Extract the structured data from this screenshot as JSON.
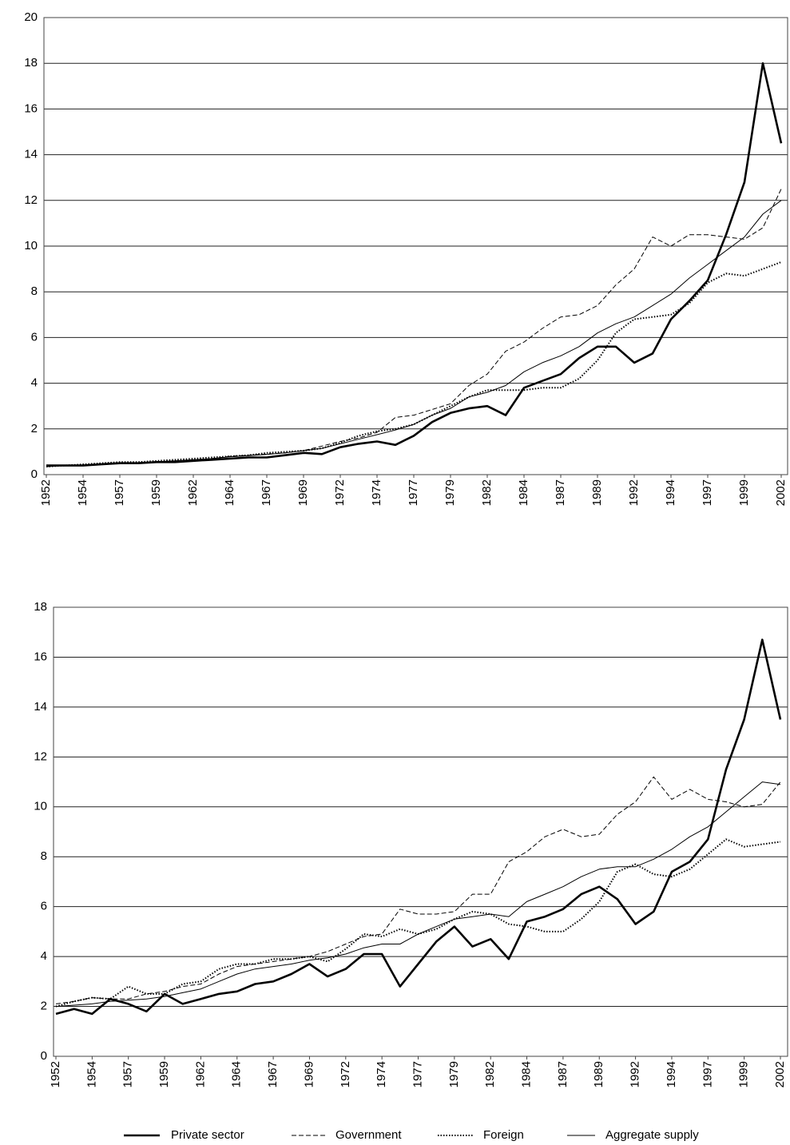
{
  "chart_data": [
    {
      "type": "line",
      "categories": [
        "1952",
        null,
        "1954",
        null,
        "1957",
        null,
        "1959",
        null,
        "1962",
        null,
        "1964",
        null,
        "1967",
        null,
        "1969",
        null,
        "1972",
        null,
        "1974",
        null,
        "1977",
        null,
        "1979",
        null,
        "1982",
        null,
        "1984",
        null,
        "1987",
        null,
        "1989",
        null,
        "1992",
        null,
        "1994",
        null,
        "1997",
        null,
        "1999",
        null,
        "2002"
      ],
      "ylim": [
        0,
        20
      ],
      "yticks": [
        0,
        2,
        4,
        6,
        8,
        10,
        12,
        14,
        16,
        18,
        20
      ],
      "grid": true,
      "series": [
        {
          "style": "bold",
          "color": "#000000",
          "values": [
            0.4,
            0.4,
            0.4,
            0.45,
            0.5,
            0.5,
            0.55,
            0.55,
            0.6,
            0.65,
            0.7,
            0.75,
            0.75,
            0.85,
            0.95,
            0.9,
            1.2,
            1.35,
            1.45,
            1.3,
            1.7,
            2.3,
            2.7,
            2.9,
            3.0,
            2.6,
            3.8,
            4.1,
            4.4,
            5.1,
            5.6,
            5.6,
            4.9,
            5.3,
            6.8,
            7.6,
            8.5,
            10.5,
            12.8,
            18.0,
            14.5
          ]
        },
        {
          "style": "dashed",
          "color": "#000000",
          "values": [
            0.35,
            0.4,
            0.4,
            0.45,
            0.5,
            0.5,
            0.55,
            0.6,
            0.65,
            0.7,
            0.8,
            0.85,
            0.9,
            0.95,
            1.05,
            1.25,
            1.45,
            1.6,
            1.85,
            2.5,
            2.6,
            2.85,
            3.1,
            3.9,
            4.4,
            5.4,
            5.8,
            6.4,
            6.9,
            7.0,
            7.4,
            8.3,
            9.0,
            10.4,
            10.0,
            10.5,
            10.5,
            10.4,
            10.3,
            10.8,
            12.5
          ]
        },
        {
          "style": "dotted",
          "color": "#000000",
          "values": [
            0.35,
            0.4,
            0.45,
            0.5,
            0.55,
            0.55,
            0.6,
            0.65,
            0.7,
            0.75,
            0.8,
            0.85,
            0.95,
            1.0,
            1.05,
            1.15,
            1.4,
            1.7,
            1.9,
            2.0,
            2.2,
            2.6,
            3.0,
            3.4,
            3.7,
            3.7,
            3.7,
            3.8,
            3.8,
            4.2,
            5.0,
            6.2,
            6.8,
            6.9,
            7.0,
            7.5,
            8.4,
            8.8,
            8.7,
            9.0,
            9.3
          ]
        },
        {
          "style": "thin",
          "color": "#000000",
          "values": [
            0.35,
            0.4,
            0.42,
            0.47,
            0.5,
            0.52,
            0.57,
            0.6,
            0.65,
            0.7,
            0.78,
            0.83,
            0.88,
            0.95,
            1.05,
            1.15,
            1.35,
            1.55,
            1.75,
            1.95,
            2.2,
            2.6,
            2.9,
            3.4,
            3.6,
            3.9,
            4.5,
            4.9,
            5.2,
            5.6,
            6.2,
            6.6,
            6.9,
            7.4,
            7.9,
            8.6,
            9.2,
            9.8,
            10.4,
            11.4,
            12.0
          ]
        }
      ]
    },
    {
      "type": "line",
      "categories": [
        "1952",
        null,
        "1954",
        null,
        "1957",
        null,
        "1959",
        null,
        "1962",
        null,
        "1964",
        null,
        "1967",
        null,
        "1969",
        null,
        "1972",
        null,
        "1974",
        null,
        "1977",
        null,
        "1979",
        null,
        "1982",
        null,
        "1984",
        null,
        "1987",
        null,
        "1989",
        null,
        "1992",
        null,
        "1994",
        null,
        "1997",
        null,
        "1999",
        null,
        "2002"
      ],
      "ylim": [
        0,
        18
      ],
      "yticks": [
        0,
        2,
        4,
        6,
        8,
        10,
        12,
        14,
        16,
        18
      ],
      "grid": true,
      "legend": "bottom",
      "series": [
        {
          "name": "Private sector",
          "style": "bold",
          "color": "#000000",
          "values": [
            1.7,
            1.9,
            1.7,
            2.3,
            2.1,
            1.8,
            2.5,
            2.1,
            2.3,
            2.5,
            2.6,
            2.9,
            3.0,
            3.3,
            3.7,
            3.2,
            3.5,
            4.1,
            4.1,
            2.8,
            3.7,
            4.6,
            5.2,
            4.4,
            4.7,
            3.9,
            5.4,
            5.6,
            5.9,
            6.5,
            6.8,
            6.3,
            5.3,
            5.8,
            7.4,
            7.8,
            8.7,
            11.5,
            13.5,
            16.7,
            13.5
          ]
        },
        {
          "name": "Government",
          "style": "dashed",
          "color": "#000000",
          "values": [
            2.1,
            2.2,
            2.35,
            2.3,
            2.3,
            2.5,
            2.6,
            2.8,
            2.9,
            3.3,
            3.6,
            3.7,
            3.8,
            3.9,
            4.0,
            4.2,
            4.5,
            4.8,
            4.9,
            5.9,
            5.7,
            5.7,
            5.8,
            6.5,
            6.5,
            7.8,
            8.2,
            8.8,
            9.1,
            8.8,
            8.9,
            9.7,
            10.2,
            11.2,
            10.3,
            10.7,
            10.3,
            10.2,
            10.0,
            10.1,
            11.0
          ]
        },
        {
          "name": "Foreign",
          "style": "dotted",
          "color": "#000000",
          "values": [
            2.0,
            2.2,
            2.35,
            2.3,
            2.8,
            2.5,
            2.5,
            2.9,
            3.0,
            3.5,
            3.7,
            3.7,
            3.9,
            3.9,
            4.0,
            3.8,
            4.3,
            4.9,
            4.8,
            5.1,
            4.9,
            5.1,
            5.5,
            5.8,
            5.7,
            5.3,
            5.2,
            5.0,
            5.0,
            5.5,
            6.2,
            7.4,
            7.7,
            7.3,
            7.2,
            7.5,
            8.1,
            8.7,
            8.4,
            8.5,
            8.6
          ]
        },
        {
          "name": "Aggregate supply",
          "style": "thin",
          "color": "#000000",
          "values": [
            2.0,
            2.05,
            2.1,
            2.2,
            2.25,
            2.3,
            2.4,
            2.55,
            2.7,
            3.0,
            3.3,
            3.5,
            3.6,
            3.7,
            3.85,
            3.95,
            4.1,
            4.35,
            4.5,
            4.5,
            4.9,
            5.2,
            5.5,
            5.6,
            5.7,
            5.6,
            6.2,
            6.5,
            6.8,
            7.2,
            7.5,
            7.6,
            7.6,
            7.9,
            8.3,
            8.8,
            9.2,
            9.8,
            10.4,
            11.0,
            10.9
          ]
        }
      ]
    }
  ]
}
